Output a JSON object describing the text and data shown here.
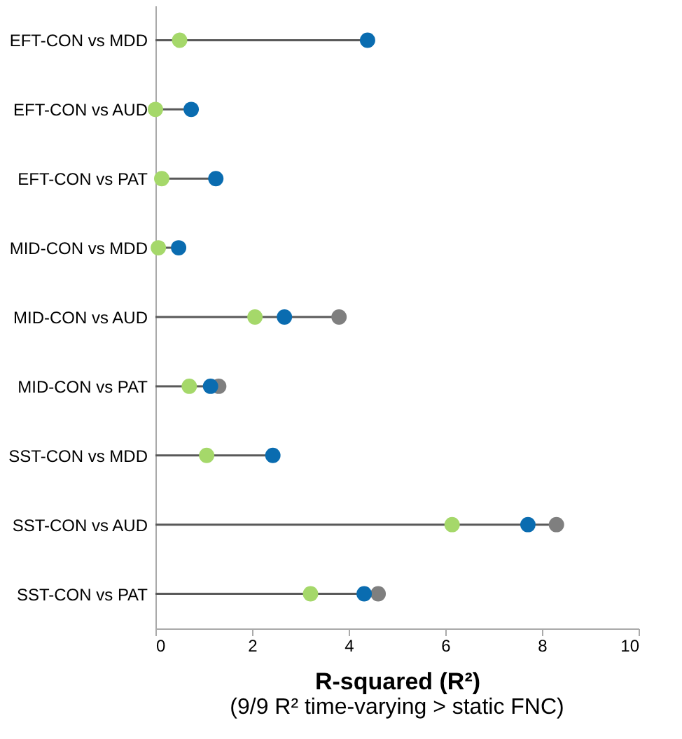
{
  "chart_data": {
    "type": "lollipop",
    "orientation": "horizontal",
    "xlabel": "R-squared (R²)",
    "annotations": [
      "(9/9 R² time-varying > static FNC)"
    ],
    "categories": [
      "EFT-CON vs MDD",
      "EFT-CON vs AUD",
      "EFT-CON vs PAT",
      "MID-CON vs MDD",
      "MID-CON vs AUD",
      "MID-CON vs PAT",
      "SST-CON vs MDD",
      "SST-CON vs AUD",
      "SST-CON vs PAT"
    ],
    "series": [
      {
        "color": "#7f7f7f",
        "values": [
          null,
          null,
          null,
          null,
          3.8,
          1.31,
          null,
          8.3,
          4.61
        ]
      },
      {
        "color": "#0a6cb0",
        "values": [
          4.39,
          0.74,
          1.25,
          0.48,
          2.67,
          1.14,
          2.43,
          7.71,
          4.32
        ]
      },
      {
        "color": "#a5d86a",
        "values": [
          0.5,
          0.0,
          0.13,
          0.06,
          2.06,
          0.7,
          1.06,
          6.14,
          3.21
        ]
      }
    ],
    "xlim": [
      0,
      10
    ],
    "xticks": [
      0,
      2,
      4,
      6,
      8,
      10
    ],
    "marker": "circle"
  }
}
